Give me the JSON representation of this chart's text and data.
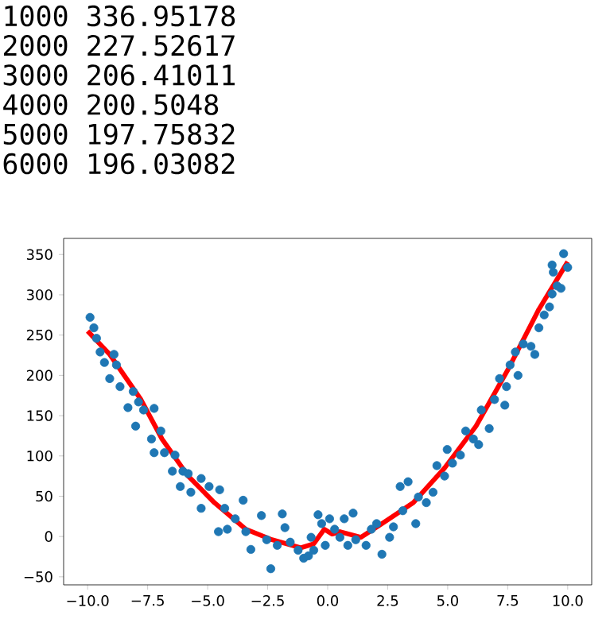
{
  "chart_data": {
    "type": "scatter",
    "annotations": [
      "1000 336.95178",
      "2000 227.52617",
      "3000 206.41011",
      "4000 200.5048",
      "5000 197.75832",
      "6000 196.03082"
    ],
    "xlim": [
      -11,
      11
    ],
    "ylim": [
      -60,
      370
    ],
    "xticks": [
      {
        "value": -10,
        "label": "−10.0"
      },
      {
        "value": -7.5,
        "label": "−7.5"
      },
      {
        "value": -5,
        "label": "−5.0"
      },
      {
        "value": -2.5,
        "label": "−2.5"
      },
      {
        "value": 0,
        "label": "0.0"
      },
      2.5,
      {
        "value": 5,
        "label": "5.0"
      },
      7.5,
      {
        "value": 10,
        "label": "10.0"
      }
    ],
    "yticks": [
      {
        "value": -50,
        "label": "−50"
      },
      0,
      50,
      100,
      150,
      200,
      250,
      300,
      350
    ],
    "series": [
      {
        "color": "#1f77b4",
        "marker": "circle",
        "x": [
          -9.9,
          -9.74,
          -9.63,
          -9.48,
          -9.3,
          -8.9,
          -9.08,
          -8.8,
          -8.65,
          -8.32,
          -8.1,
          -7.88,
          -8.0,
          -7.67,
          -7.23,
          -7.34,
          -6.95,
          -7.23,
          -6.8,
          -6.36,
          -6.47,
          -6.03,
          -6.14,
          -5.81,
          -5.7,
          -5.27,
          -4.94,
          -5.27,
          -4.5,
          -4.55,
          -4.29,
          -4.18,
          -3.52,
          -3.85,
          -3.41,
          -3.2,
          -2.76,
          -2.54,
          -2.37,
          -1.89,
          -1.78,
          -2.1,
          -1.56,
          -1.23,
          -1.0,
          -0.8,
          -0.58,
          -0.4,
          -0.69,
          -0.25,
          -0.1,
          0.08,
          0.29,
          0.51,
          0.69,
          1.06,
          0.84,
          1.17,
          1.6,
          1.82,
          2.04,
          2.26,
          2.58,
          2.74,
          3.02,
          3.35,
          3.13,
          3.67,
          3.78,
          4.11,
          4.39,
          4.55,
          4.87,
          4.98,
          5.2,
          5.53,
          5.75,
          6.07,
          6.29,
          6.4,
          6.73,
          6.95,
          7.16,
          7.38,
          7.45,
          7.6,
          7.82,
          7.93,
          8.15,
          8.47,
          8.63,
          8.8,
          9.02,
          9.24,
          9.35,
          9.56,
          9.72,
          9.35,
          9.83,
          10.0,
          9.4
        ],
        "values": [
          272,
          259,
          246,
          229,
          216,
          226,
          196,
          213,
          186,
          160,
          180,
          167,
          137,
          157,
          159,
          121,
          131,
          104,
          104,
          101,
          81,
          81,
          62,
          78,
          55,
          72,
          62,
          35,
          58,
          6,
          35,
          9,
          45,
          22,
          6,
          -16,
          26,
          -4,
          -40,
          28,
          11,
          -11,
          -7,
          -17,
          -27,
          -24,
          -17,
          27,
          -1,
          16,
          -11,
          22,
          9,
          -1,
          22,
          29,
          -11,
          -4,
          -11,
          9,
          16,
          -22,
          -1,
          12,
          62,
          68,
          32,
          16,
          49,
          42,
          55,
          88,
          75,
          108,
          91,
          101,
          131,
          121,
          114,
          157,
          134,
          170,
          196,
          163,
          186,
          213,
          229,
          200,
          239,
          236,
          226,
          259,
          275,
          285,
          301,
          311,
          308,
          337,
          351,
          334,
          328
        ]
      },
      {
        "type": "line",
        "color": "#ff0000",
        "marker": "none",
        "x": [
          -10,
          -9.08,
          -7.78,
          -6.9,
          -5.81,
          -4.72,
          -3.41,
          -2.32,
          -1.12,
          -0.58,
          -0.14,
          0.19,
          0.51,
          1.38,
          2.26,
          3.57,
          4.87,
          6.18,
          7.49,
          8.8,
          10
        ],
        "values": [
          255,
          226,
          170,
          121,
          75,
          42,
          9,
          -4,
          -14,
          -9,
          9,
          3,
          6,
          -1,
          16,
          42,
          85,
          137,
          206,
          282,
          341
        ]
      }
    ]
  }
}
